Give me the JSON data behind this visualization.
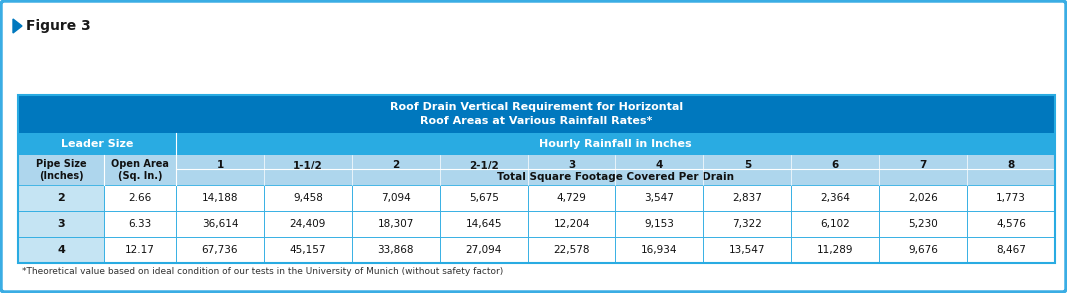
{
  "figure_label": "Figure 3",
  "main_title": "Roof Drain Vertical Requirement for Horizontal\nRoof Areas at Various Rainfall Rates*",
  "leader_size_label": "Leader Size",
  "hourly_rainfall_label": "Hourly Rainfall in Inches",
  "pipe_size_label": "Pipe Size\n(Inches)",
  "open_area_label": "Open Area\n(Sq. In.)",
  "rainfall_cols": [
    "1",
    "1-1/2",
    "2",
    "2-1/2",
    "3",
    "4",
    "5",
    "6",
    "7",
    "8"
  ],
  "total_sqft_label": "Total Square Footage Covered Per Drain",
  "rows": [
    {
      "pipe": "2",
      "area": "2.66",
      "values": [
        "14,188",
        "9,458",
        "7,094",
        "5,675",
        "4,729",
        "3,547",
        "2,837",
        "2,364",
        "2,026",
        "1,773"
      ]
    },
    {
      "pipe": "3",
      "area": "6.33",
      "values": [
        "36,614",
        "24,409",
        "18,307",
        "14,645",
        "12,204",
        "9,153",
        "7,322",
        "6,102",
        "5,230",
        "4,576"
      ]
    },
    {
      "pipe": "4",
      "area": "12.17",
      "values": [
        "67,736",
        "45,157",
        "33,868",
        "27,094",
        "22,578",
        "16,934",
        "13,547",
        "11,289",
        "9,676",
        "8,467"
      ]
    }
  ],
  "footnote": "*Theoretical value based on ideal condition of our tests in the University of Munich (without safety factor)",
  "color_dark_blue": "#0078BE",
  "color_medium_blue": "#29ABE2",
  "color_light_blue": "#AED6ED",
  "color_pipe_blue": "#C5E4F3",
  "color_white": "#FFFFFF",
  "color_border": "#3AADE4",
  "bg_color": "#FFFFFF"
}
